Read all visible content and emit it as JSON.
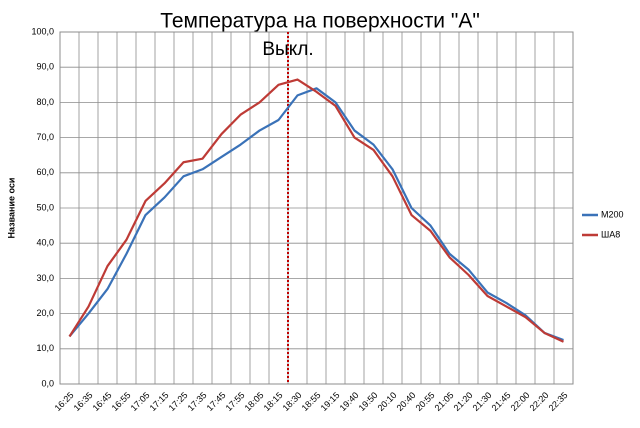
{
  "chart_data": {
    "type": "line",
    "title": "Температура на поверхности \"А\"",
    "annotation": "Выкл.",
    "annotation_category": "18:30",
    "y_label": "Название оси",
    "categories": [
      "16:25",
      "16:35",
      "16:45",
      "16:55",
      "17:05",
      "17:15",
      "17:25",
      "17:35",
      "17:45",
      "17:55",
      "18:05",
      "18:15",
      "18:30",
      "18:55",
      "19:15",
      "19:40",
      "19:50",
      "20:10",
      "20:40",
      "20:55",
      "21:05",
      "21:20",
      "21:30",
      "21:45",
      "22:00",
      "22:20",
      "22:35"
    ],
    "series": [
      {
        "name": "M200",
        "color": "#3a72b8",
        "values": [
          13.5,
          20,
          27,
          37,
          48,
          53,
          59,
          61,
          64.5,
          68,
          72,
          75,
          82,
          84,
          80,
          72,
          68,
          61,
          50,
          45,
          37,
          32.5,
          26,
          23,
          19.5,
          14.5,
          12.5
        ]
      },
      {
        "name": "ША8",
        "color": "#be3b36",
        "values": [
          13.5,
          22,
          33.5,
          41,
          52,
          57,
          63,
          64,
          71,
          76.5,
          80,
          85,
          86.5,
          83,
          79,
          70,
          66.5,
          59,
          48,
          43.5,
          36,
          31,
          25,
          22,
          19,
          14.5,
          12
        ]
      }
    ],
    "ylim": [
      0,
      100
    ],
    "yticks": [
      {
        "value": 0,
        "label": "0,0"
      },
      {
        "value": 10,
        "label": "10,0"
      },
      {
        "value": 20,
        "label": "20,0"
      },
      {
        "value": 30,
        "label": "30,0"
      },
      {
        "value": 40,
        "label": "40,0"
      },
      {
        "value": 50,
        "label": "50,0"
      },
      {
        "value": 60,
        "label": "60,0"
      },
      {
        "value": 70,
        "label": "70,0"
      },
      {
        "value": 80,
        "label": "80,0"
      },
      {
        "value": 90,
        "label": "90,0"
      },
      {
        "value": 100,
        "label": "100,0"
      }
    ],
    "grid": true,
    "legend": "right"
  }
}
